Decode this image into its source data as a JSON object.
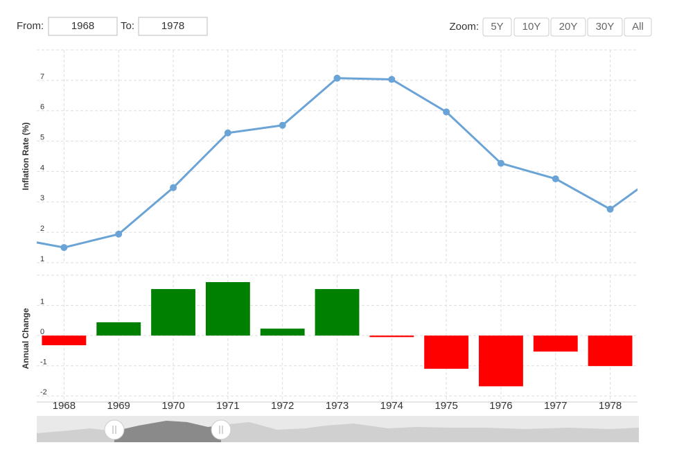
{
  "controls": {
    "from_label": "From:",
    "from_value": "1968",
    "to_label": "To:",
    "to_value": "1978",
    "zoom_label": "Zoom:",
    "zoom_buttons": [
      "5Y",
      "10Y",
      "20Y",
      "30Y",
      "All"
    ]
  },
  "chart_data": [
    {
      "type": "line",
      "y_label": "Inflation Rate (%)",
      "x": [
        1967,
        1968,
        1969,
        1970,
        1971,
        1972,
        1973,
        1974,
        1975,
        1976,
        1977,
        1978,
        1979
      ],
      "values": [
        1.83,
        1.5,
        1.94,
        3.47,
        5.27,
        5.52,
        7.07,
        7.03,
        5.96,
        4.27,
        3.76,
        2.76,
        4.06
      ],
      "color": "#6aa3d5",
      "xlim": [
        1967.5,
        1978.5
      ],
      "xticks": [
        1968,
        1969,
        1970,
        1971,
        1972,
        1973,
        1974,
        1975,
        1976,
        1977,
        1978
      ],
      "ylim": [
        1,
        8
      ],
      "yticks": [
        1,
        2,
        3,
        4,
        5,
        6,
        7
      ],
      "grid": true
    },
    {
      "type": "bar",
      "y_label": "Annual Change",
      "x": [
        1968,
        1969,
        1970,
        1971,
        1972,
        1973,
        1974,
        1975,
        1976,
        1977,
        1978
      ],
      "values": [
        -0.32,
        0.44,
        1.54,
        1.77,
        0.23,
        1.54,
        -0.05,
        -1.1,
        -1.68,
        -0.53,
        -1.01
      ],
      "positive_color": "#008000",
      "negative_color": "#ff0000",
      "xlim": [
        1967.5,
        1978.5
      ],
      "xticks": [
        1968,
        1969,
        1970,
        1971,
        1972,
        1973,
        1974,
        1975,
        1976,
        1977,
        1978
      ],
      "ylim": [
        -2.2,
        2
      ],
      "yticks": [
        -2,
        -1,
        0,
        1
      ],
      "grid": true
    }
  ],
  "navigator": {
    "xlim": [
      1959.6,
      2022
    ],
    "xticks": [
      1960,
      1970,
      1980,
      1990,
      2000,
      2010,
      2020
    ]
  }
}
